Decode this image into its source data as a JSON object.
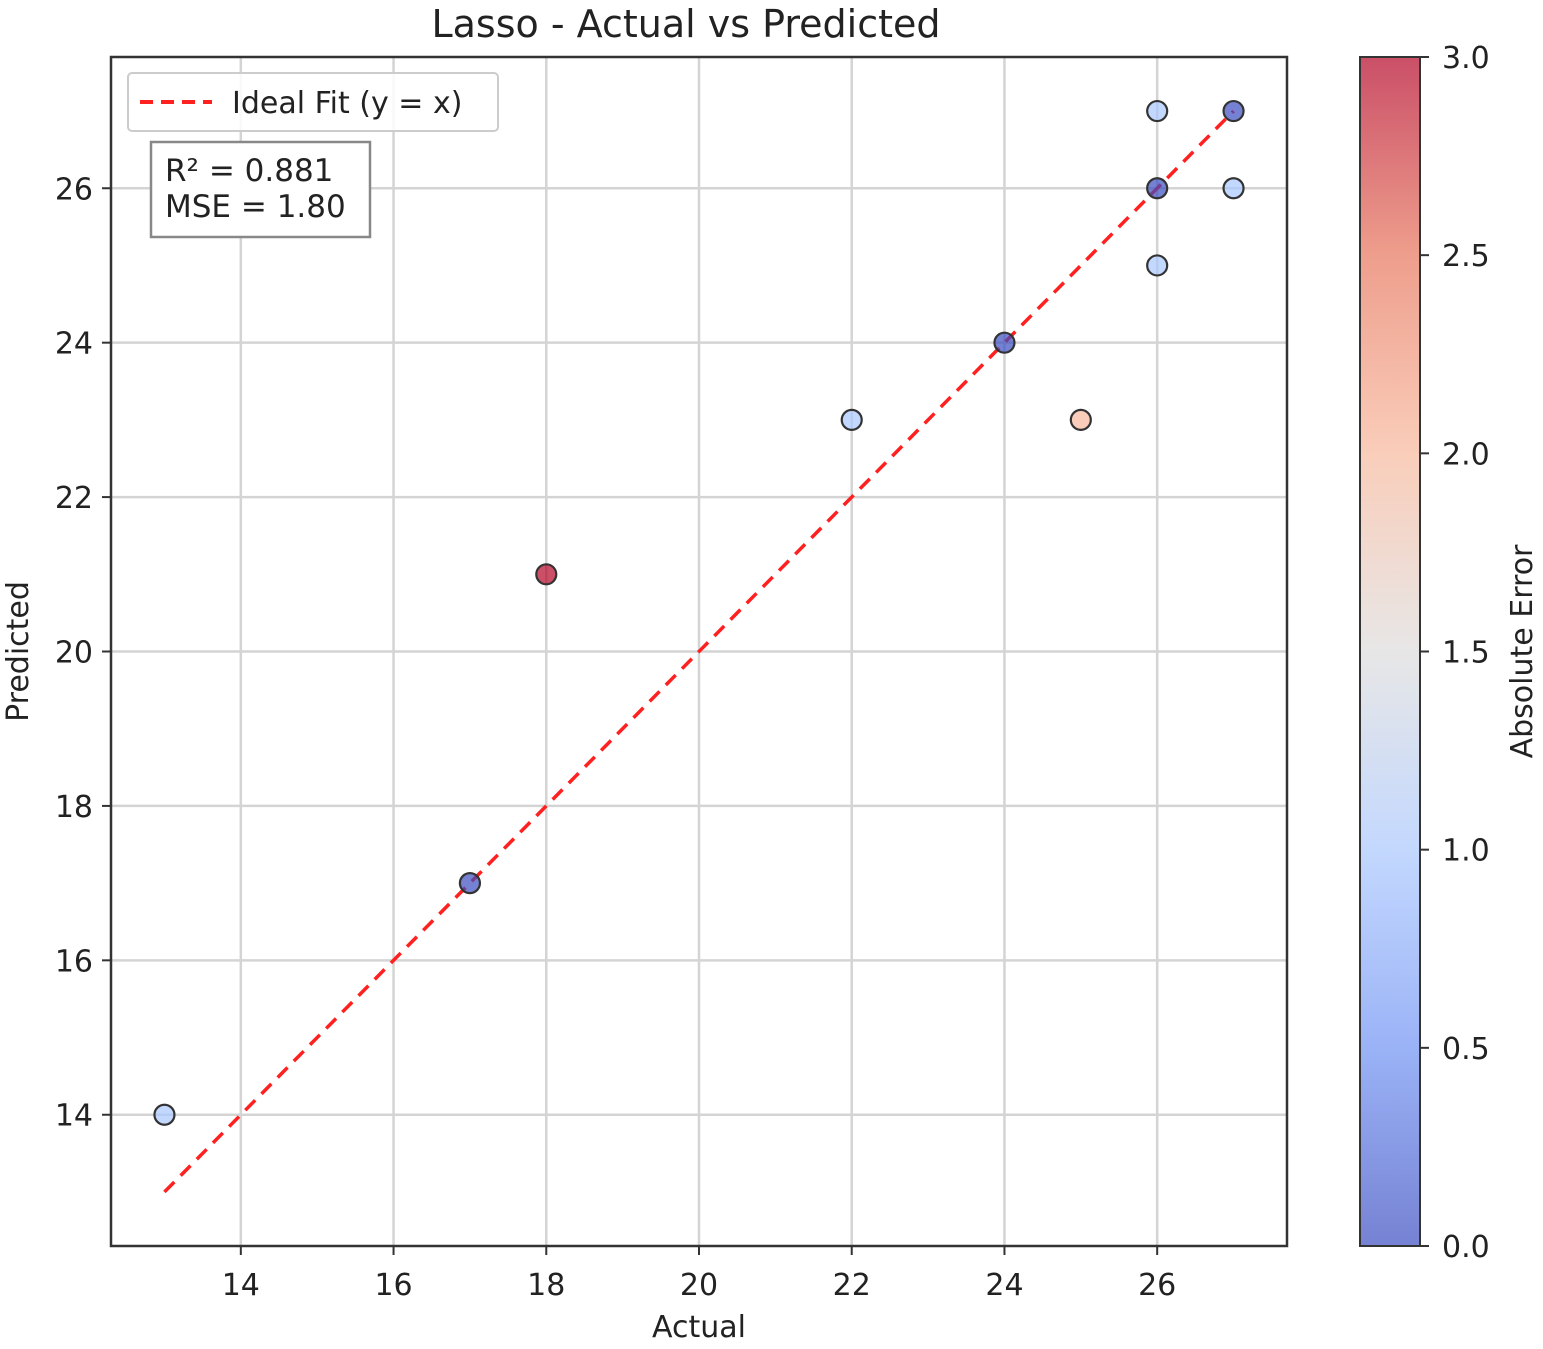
{
  "chart_data": {
    "type": "scatter",
    "title": "Lasso - Actual vs Predicted",
    "xlabel": "Actual",
    "ylabel": "Predicted",
    "xlim": [
      12.3,
      27.7
    ],
    "ylim": [
      12.3,
      27.7
    ],
    "xticks": [
      14,
      16,
      18,
      20,
      22,
      24,
      26
    ],
    "yticks": [
      14,
      16,
      18,
      20,
      22,
      24,
      26
    ],
    "grid": true,
    "legend": {
      "position": "top-left",
      "entries": [
        {
          "label": "Ideal Fit (y = x)",
          "style": "dashed",
          "color": "#ff2020"
        }
      ]
    },
    "reference_line": {
      "x": [
        13,
        27
      ],
      "y": [
        13,
        27
      ],
      "color": "#ff2020",
      "style": "dashed"
    },
    "annotation": {
      "lines": [
        "R² = 0.881",
        "MSE = 1.80"
      ],
      "position": "top-left"
    },
    "points": [
      {
        "x": 13,
        "y": 14,
        "error": 1.0
      },
      {
        "x": 17,
        "y": 17,
        "error": 0.0
      },
      {
        "x": 18,
        "y": 21,
        "error": 3.0
      },
      {
        "x": 22,
        "y": 23,
        "error": 1.0
      },
      {
        "x": 24,
        "y": 24,
        "error": 0.0
      },
      {
        "x": 25,
        "y": 23,
        "error": 2.0
      },
      {
        "x": 26,
        "y": 27,
        "error": 1.0
      },
      {
        "x": 26,
        "y": 26,
        "error": 0.0
      },
      {
        "x": 26,
        "y": 25,
        "error": 1.0
      },
      {
        "x": 27,
        "y": 27,
        "error": 0.0
      },
      {
        "x": 27,
        "y": 26,
        "error": 1.0
      }
    ],
    "colorbar": {
      "label": "Absolute Error",
      "colormap": "coolwarm",
      "range": [
        0,
        3
      ],
      "ticks": [
        "0.0",
        "0.5",
        "1.0",
        "1.5",
        "2.0",
        "2.5",
        "3.0"
      ],
      "colors": [
        "#3b4cc0",
        "#6f92f3",
        "#aac7fd",
        "#dddcdc",
        "#f7b89c",
        "#e7745b",
        "#b40426"
      ],
      "alpha": 0.7
    }
  }
}
